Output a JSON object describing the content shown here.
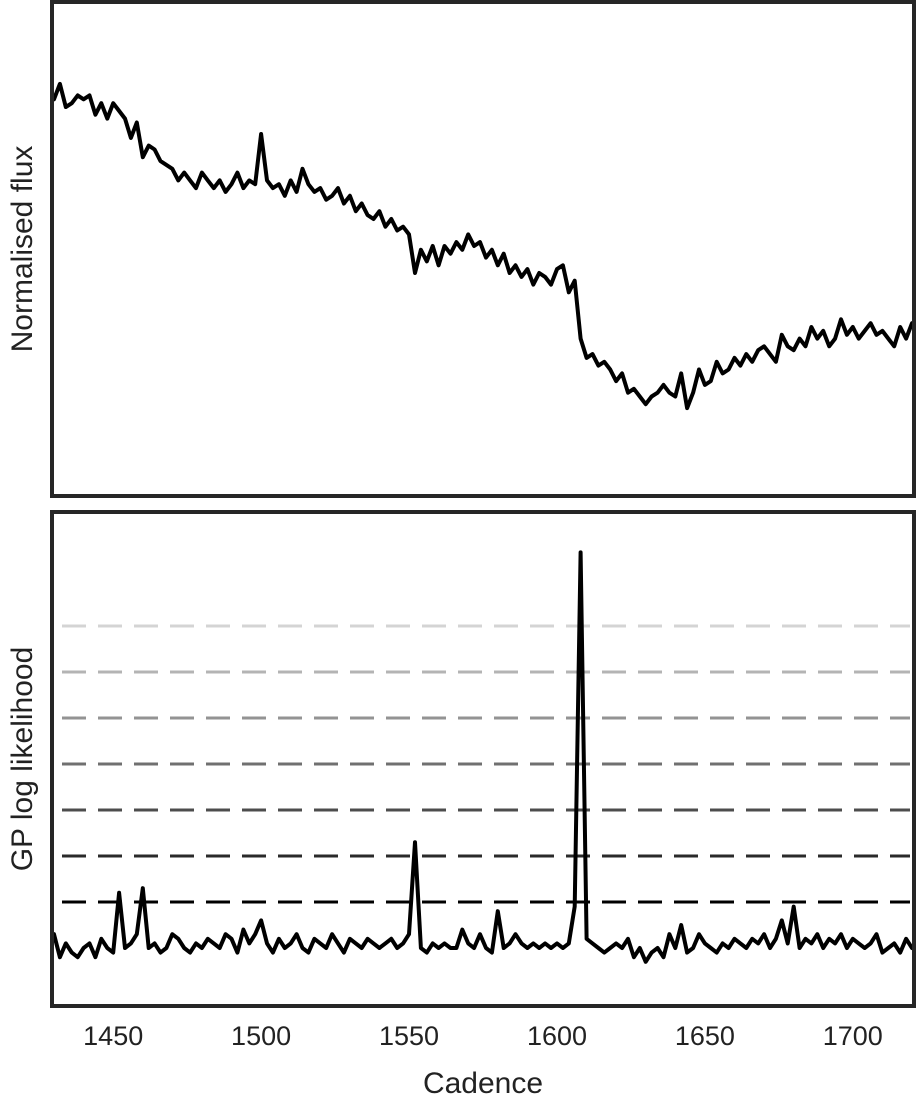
{
  "chart_data": [
    {
      "type": "line",
      "title": "",
      "xlabel": "",
      "ylabel": "Normalised flux",
      "xlim": [
        1430,
        1720
      ],
      "ylim": [
        0,
        1
      ],
      "yticks_shown": false,
      "grid": false,
      "series": [
        {
          "x": [
            1430,
            1432,
            1434,
            1436,
            1438,
            1440,
            1442,
            1444,
            1446,
            1448,
            1450,
            1452,
            1454,
            1456,
            1458,
            1460,
            1462,
            1464,
            1466,
            1468,
            1470,
            1472,
            1474,
            1476,
            1478,
            1480,
            1482,
            1484,
            1486,
            1488,
            1490,
            1492,
            1494,
            1496,
            1498,
            1500,
            1502,
            1504,
            1506,
            1508,
            1510,
            1512,
            1514,
            1516,
            1518,
            1520,
            1522,
            1524,
            1526,
            1528,
            1530,
            1532,
            1534,
            1536,
            1538,
            1540,
            1542,
            1544,
            1546,
            1548,
            1550,
            1552,
            1554,
            1556,
            1558,
            1560,
            1562,
            1564,
            1566,
            1568,
            1570,
            1572,
            1574,
            1576,
            1578,
            1580,
            1582,
            1584,
            1586,
            1588,
            1590,
            1592,
            1594,
            1596,
            1598,
            1600,
            1602,
            1604,
            1606,
            1608,
            1610,
            1612,
            1614,
            1616,
            1618,
            1620,
            1622,
            1624,
            1626,
            1628,
            1630,
            1632,
            1634,
            1636,
            1638,
            1640,
            1642,
            1644,
            1646,
            1648,
            1650,
            1652,
            1654,
            1656,
            1658,
            1660,
            1662,
            1664,
            1666,
            1668,
            1670,
            1672,
            1674,
            1676,
            1678,
            1680,
            1682,
            1684,
            1686,
            1688,
            1690,
            1692,
            1694,
            1696,
            1698,
            1700,
            1702,
            1704,
            1706,
            1708,
            1710,
            1712,
            1714,
            1716,
            1718,
            1720
          ],
          "y": [
            0.95,
            0.99,
            0.93,
            0.94,
            0.96,
            0.95,
            0.96,
            0.91,
            0.94,
            0.9,
            0.94,
            0.92,
            0.9,
            0.85,
            0.89,
            0.8,
            0.83,
            0.82,
            0.79,
            0.78,
            0.77,
            0.74,
            0.76,
            0.74,
            0.72,
            0.76,
            0.74,
            0.72,
            0.74,
            0.71,
            0.73,
            0.76,
            0.72,
            0.74,
            0.73,
            0.86,
            0.74,
            0.72,
            0.73,
            0.7,
            0.74,
            0.71,
            0.77,
            0.73,
            0.71,
            0.72,
            0.69,
            0.7,
            0.72,
            0.68,
            0.7,
            0.66,
            0.68,
            0.65,
            0.64,
            0.66,
            0.62,
            0.64,
            0.61,
            0.62,
            0.6,
            0.5,
            0.56,
            0.53,
            0.57,
            0.52,
            0.57,
            0.55,
            0.58,
            0.56,
            0.6,
            0.57,
            0.58,
            0.54,
            0.56,
            0.52,
            0.55,
            0.5,
            0.52,
            0.49,
            0.51,
            0.47,
            0.5,
            0.49,
            0.47,
            0.51,
            0.52,
            0.45,
            0.48,
            0.33,
            0.28,
            0.29,
            0.26,
            0.27,
            0.25,
            0.22,
            0.24,
            0.19,
            0.2,
            0.18,
            0.16,
            0.18,
            0.19,
            0.21,
            0.19,
            0.18,
            0.24,
            0.15,
            0.19,
            0.25,
            0.21,
            0.22,
            0.27,
            0.24,
            0.25,
            0.28,
            0.26,
            0.29,
            0.27,
            0.3,
            0.31,
            0.29,
            0.27,
            0.34,
            0.31,
            0.3,
            0.33,
            0.31,
            0.36,
            0.33,
            0.35,
            0.31,
            0.33,
            0.38,
            0.34,
            0.36,
            0.33,
            0.35,
            0.37,
            0.34,
            0.35,
            0.33,
            0.31,
            0.36,
            0.33,
            0.37
          ]
        }
      ]
    },
    {
      "type": "line",
      "title": "",
      "xlabel": "Cadence",
      "ylabel": "GP log likelihood",
      "xlim": [
        1430,
        1720
      ],
      "xticks": [
        1450,
        1500,
        1550,
        1600,
        1650,
        1700
      ],
      "ylim": [
        -1,
        9
      ],
      "yticks_shown": false,
      "grid": false,
      "threshold_levels": [
        1,
        2,
        3,
        4,
        5,
        6,
        7
      ],
      "threshold_colors": [
        "#000000",
        "#2a2a2a",
        "#4d4d4d",
        "#707070",
        "#939393",
        "#b4b4b4",
        "#d4d4d4"
      ],
      "series": [
        {
          "x": [
            1430,
            1432,
            1434,
            1436,
            1438,
            1440,
            1442,
            1444,
            1446,
            1448,
            1450,
            1452,
            1454,
            1456,
            1458,
            1460,
            1462,
            1464,
            1466,
            1468,
            1470,
            1472,
            1474,
            1476,
            1478,
            1480,
            1482,
            1484,
            1486,
            1488,
            1490,
            1492,
            1494,
            1496,
            1498,
            1500,
            1502,
            1504,
            1506,
            1508,
            1510,
            1512,
            1514,
            1516,
            1518,
            1520,
            1522,
            1524,
            1526,
            1528,
            1530,
            1532,
            1534,
            1536,
            1538,
            1540,
            1542,
            1544,
            1546,
            1548,
            1550,
            1552,
            1554,
            1556,
            1558,
            1560,
            1562,
            1564,
            1566,
            1568,
            1570,
            1572,
            1574,
            1576,
            1578,
            1580,
            1582,
            1584,
            1586,
            1588,
            1590,
            1592,
            1594,
            1596,
            1598,
            1600,
            1602,
            1604,
            1606,
            1608,
            1610,
            1612,
            1614,
            1616,
            1618,
            1620,
            1622,
            1624,
            1626,
            1628,
            1630,
            1632,
            1634,
            1636,
            1638,
            1640,
            1642,
            1644,
            1646,
            1648,
            1650,
            1652,
            1654,
            1656,
            1658,
            1660,
            1662,
            1664,
            1666,
            1668,
            1670,
            1672,
            1674,
            1676,
            1678,
            1680,
            1682,
            1684,
            1686,
            1688,
            1690,
            1692,
            1694,
            1696,
            1698,
            1700,
            1702,
            1704,
            1706,
            1708,
            1710,
            1712,
            1714,
            1716,
            1718,
            1720
          ],
          "y": [
            0.3,
            -0.2,
            0.1,
            -0.1,
            -0.2,
            0.0,
            0.1,
            -0.2,
            0.2,
            0.0,
            -0.1,
            1.2,
            0.0,
            0.1,
            0.3,
            1.3,
            0.0,
            0.1,
            -0.1,
            0.0,
            0.3,
            0.2,
            0.0,
            -0.1,
            0.1,
            0.0,
            0.2,
            0.1,
            0.0,
            0.3,
            0.2,
            -0.1,
            0.4,
            0.1,
            0.3,
            0.6,
            0.1,
            -0.1,
            0.2,
            0.0,
            0.1,
            0.3,
            0.0,
            -0.1,
            0.2,
            0.1,
            0.0,
            0.3,
            0.1,
            -0.1,
            0.2,
            0.1,
            0.0,
            0.2,
            0.1,
            0.0,
            0.1,
            0.2,
            0.0,
            0.1,
            0.3,
            2.3,
            0.0,
            -0.1,
            0.1,
            0.0,
            0.1,
            0.0,
            0.0,
            0.4,
            0.1,
            0.0,
            0.3,
            0.0,
            -0.1,
            0.8,
            0.0,
            0.1,
            0.3,
            0.1,
            0.0,
            0.1,
            0.0,
            0.1,
            0.0,
            0.1,
            0.0,
            0.1,
            0.9,
            8.6,
            0.2,
            0.1,
            0.0,
            -0.1,
            0.0,
            0.1,
            0.0,
            0.2,
            -0.2,
            0.0,
            -0.3,
            -0.1,
            0.0,
            -0.2,
            0.3,
            0.0,
            0.5,
            -0.1,
            0.0,
            0.3,
            0.1,
            0.0,
            -0.1,
            0.1,
            0.0,
            0.2,
            0.1,
            0.0,
            0.2,
            0.1,
            0.3,
            0.0,
            0.2,
            0.6,
            0.1,
            0.9,
            0.0,
            0.2,
            0.1,
            0.3,
            0.0,
            0.2,
            0.1,
            0.3,
            0.0,
            0.2,
            0.1,
            0.0,
            0.1,
            0.3,
            -0.1,
            0.0,
            0.1,
            -0.1,
            0.2,
            0.0
          ]
        }
      ]
    }
  ]
}
